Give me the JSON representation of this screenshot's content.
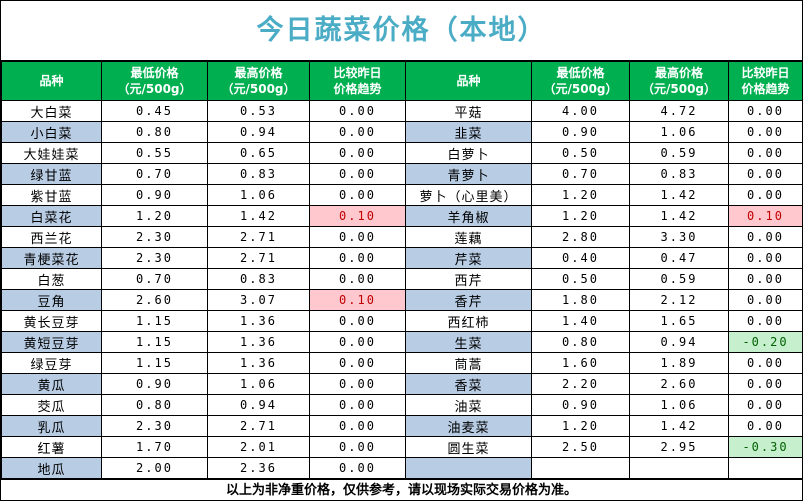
{
  "title": "今日蔬菜价格（本地）",
  "headers": {
    "name": "品种",
    "low_line1": "最低价格",
    "low_line2": "（元/500g）",
    "high_line1": "最高价格",
    "high_line2": "（元/500g）",
    "cmp_line1": "比较昨日",
    "cmp_line2": "价格趋势"
  },
  "left_rows": [
    {
      "name": "大白菜",
      "low": "0.45",
      "high": "0.53",
      "change": "0.00"
    },
    {
      "name": "小白菜",
      "low": "0.80",
      "high": "0.94",
      "change": "0.00"
    },
    {
      "name": "大娃娃菜",
      "low": "0.55",
      "high": "0.65",
      "change": "0.00"
    },
    {
      "name": "绿甘蓝",
      "low": "0.70",
      "high": "0.83",
      "change": "0.00"
    },
    {
      "name": "紫甘蓝",
      "low": "0.90",
      "high": "1.06",
      "change": "0.00"
    },
    {
      "name": "白菜花",
      "low": "1.20",
      "high": "1.42",
      "change": "0.10"
    },
    {
      "name": "西兰花",
      "low": "2.30",
      "high": "2.71",
      "change": "0.00"
    },
    {
      "name": "青梗菜花",
      "low": "2.30",
      "high": "2.71",
      "change": "0.00"
    },
    {
      "name": "白葱",
      "low": "0.70",
      "high": "0.83",
      "change": "0.00"
    },
    {
      "name": "豆角",
      "low": "2.60",
      "high": "3.07",
      "change": "0.10"
    },
    {
      "name": "黄长豆芽",
      "low": "1.15",
      "high": "1.36",
      "change": "0.00"
    },
    {
      "name": "黄短豆芽",
      "low": "1.15",
      "high": "1.36",
      "change": "0.00"
    },
    {
      "name": "绿豆芽",
      "low": "1.15",
      "high": "1.36",
      "change": "0.00"
    },
    {
      "name": "黄瓜",
      "low": "0.90",
      "high": "1.06",
      "change": "0.00"
    },
    {
      "name": "茭瓜",
      "low": "0.80",
      "high": "0.94",
      "change": "0.00"
    },
    {
      "name": "乳瓜",
      "low": "2.30",
      "high": "2.71",
      "change": "0.00"
    },
    {
      "name": "红薯",
      "low": "1.70",
      "high": "2.01",
      "change": "0.00"
    },
    {
      "name": "地瓜",
      "low": "2.00",
      "high": "2.36",
      "change": "0.00"
    }
  ],
  "right_rows": [
    {
      "name": "平菇",
      "low": "4.00",
      "high": "4.72",
      "change": "0.00"
    },
    {
      "name": "韭菜",
      "low": "0.90",
      "high": "1.06",
      "change": "0.00"
    },
    {
      "name": "白萝卜",
      "low": "0.50",
      "high": "0.59",
      "change": "0.00"
    },
    {
      "name": "青萝卜",
      "low": "0.70",
      "high": "0.83",
      "change": "0.00"
    },
    {
      "name": "萝卜（心里美）",
      "low": "1.20",
      "high": "1.42",
      "change": "0.00"
    },
    {
      "name": "羊角椒",
      "low": "1.20",
      "high": "1.42",
      "change": "0.10"
    },
    {
      "name": "莲藕",
      "low": "2.80",
      "high": "3.30",
      "change": "0.00"
    },
    {
      "name": "芹菜",
      "low": "0.40",
      "high": "0.47",
      "change": "0.00"
    },
    {
      "name": "西芹",
      "low": "0.50",
      "high": "0.59",
      "change": "0.00"
    },
    {
      "name": "香芹",
      "low": "1.80",
      "high": "2.12",
      "change": "0.00"
    },
    {
      "name": "西红柿",
      "low": "1.40",
      "high": "1.65",
      "change": "0.00"
    },
    {
      "name": "生菜",
      "low": "0.80",
      "high": "0.94",
      "change": "-0.20"
    },
    {
      "name": "茼蒿",
      "low": "1.60",
      "high": "1.89",
      "change": "0.00"
    },
    {
      "name": "香菜",
      "low": "2.20",
      "high": "2.60",
      "change": "0.00"
    },
    {
      "name": "油菜",
      "low": "0.90",
      "high": "1.06",
      "change": "0.00"
    },
    {
      "name": "油麦菜",
      "low": "1.20",
      "high": "1.42",
      "change": "0.00"
    },
    {
      "name": "圆生菜",
      "low": "2.50",
      "high": "2.95",
      "change": "-0.30"
    },
    {
      "name": "",
      "low": "",
      "high": "",
      "change": ""
    }
  ],
  "footer": "以上为非净重价格，仅供参考，请以现场实际交易价格为准。",
  "colors": {
    "title_text": "#4bacc6",
    "header_bg": "#00b050",
    "alt_row_name_bg": "#b8cce4",
    "increase_bg": "#ffc7ce",
    "increase_text": "#c00000",
    "decrease_bg": "#c6efce",
    "decrease_text": "#006100"
  }
}
